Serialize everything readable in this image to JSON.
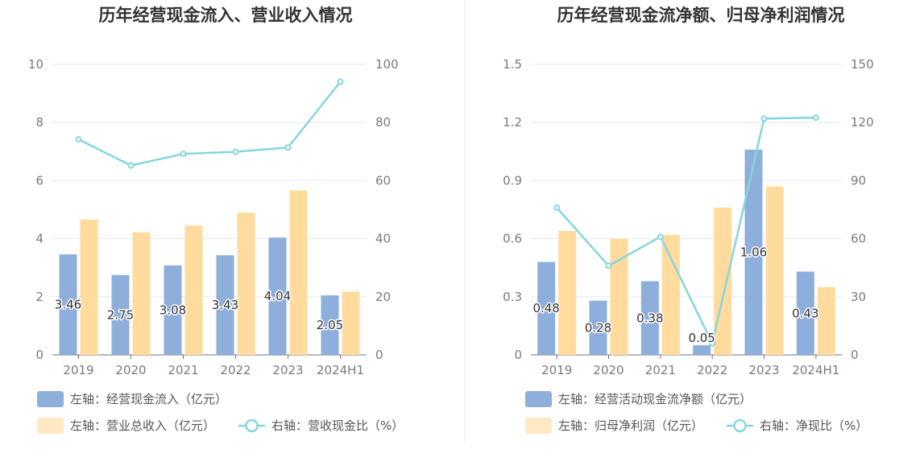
{
  "chart_data": [
    {
      "type": "bar",
      "title": "历年经营现金流入、营业收入情况",
      "categories": [
        "2019",
        "2020",
        "2021",
        "2022",
        "2023",
        "2024H1"
      ],
      "y_left": {
        "ticks": [
          "0",
          "2",
          "4",
          "6",
          "8",
          "10"
        ],
        "lim": [
          0,
          10
        ]
      },
      "y_right": {
        "ticks": [
          "0",
          "20",
          "40",
          "60",
          "80",
          "100"
        ],
        "lim": [
          0,
          100
        ]
      },
      "series": [
        {
          "name": "左轴：经营现金流入（亿元）",
          "axis": "left",
          "kind": "bar",
          "color": "#8eaedc",
          "values": [
            3.46,
            2.75,
            3.08,
            3.43,
            4.04,
            2.05
          ],
          "labels": [
            "3.46",
            "2.75",
            "3.08",
            "3.43",
            "4.04",
            "2.05"
          ]
        },
        {
          "name": "左轴：营业总收入（亿元）",
          "axis": "left",
          "kind": "bar",
          "color": "#ffdb9e",
          "values": [
            4.66,
            4.22,
            4.45,
            4.9,
            5.66,
            2.18
          ]
        },
        {
          "name": "右轴：营收现金比（%）",
          "axis": "right",
          "kind": "line",
          "color": "#86d6db",
          "values": [
            74.2,
            65.2,
            69.2,
            69.9,
            71.4,
            94.0
          ]
        }
      ],
      "grid": true,
      "legend_position": "bottom-left"
    },
    {
      "type": "bar",
      "title": "历年经营现金流净额、归母净利润情况",
      "categories": [
        "2019",
        "2020",
        "2021",
        "2022",
        "2023",
        "2024H1"
      ],
      "y_left": {
        "ticks": [
          "0",
          "0.3",
          "0.6",
          "0.9",
          "1.2",
          "1.5"
        ],
        "lim": [
          0,
          1.5
        ]
      },
      "y_right": {
        "ticks": [
          "0",
          "30",
          "60",
          "90",
          "120",
          "150"
        ],
        "lim": [
          0,
          150
        ]
      },
      "series": [
        {
          "name": "左轴：经营活动现金流净额（亿元）",
          "axis": "left",
          "kind": "bar",
          "color": "#8eaedc",
          "values": [
            0.48,
            0.28,
            0.38,
            0.05,
            1.06,
            0.43
          ],
          "labels": [
            "0.48",
            "0.28",
            "0.38",
            "0.05",
            "1.06",
            "0.43"
          ]
        },
        {
          "name": "左轴：归母净利润（亿元）",
          "axis": "left",
          "kind": "bar",
          "color": "#ffdb9e",
          "values": [
            0.64,
            0.6,
            0.62,
            0.76,
            0.87,
            0.35
          ]
        },
        {
          "name": "右轴：净现比（%）",
          "axis": "right",
          "kind": "line",
          "color": "#86d6db",
          "values": [
            76.0,
            46.0,
            61.0,
            6.0,
            122.0,
            122.5
          ]
        }
      ],
      "grid": true,
      "legend_position": "bottom-left"
    }
  ]
}
